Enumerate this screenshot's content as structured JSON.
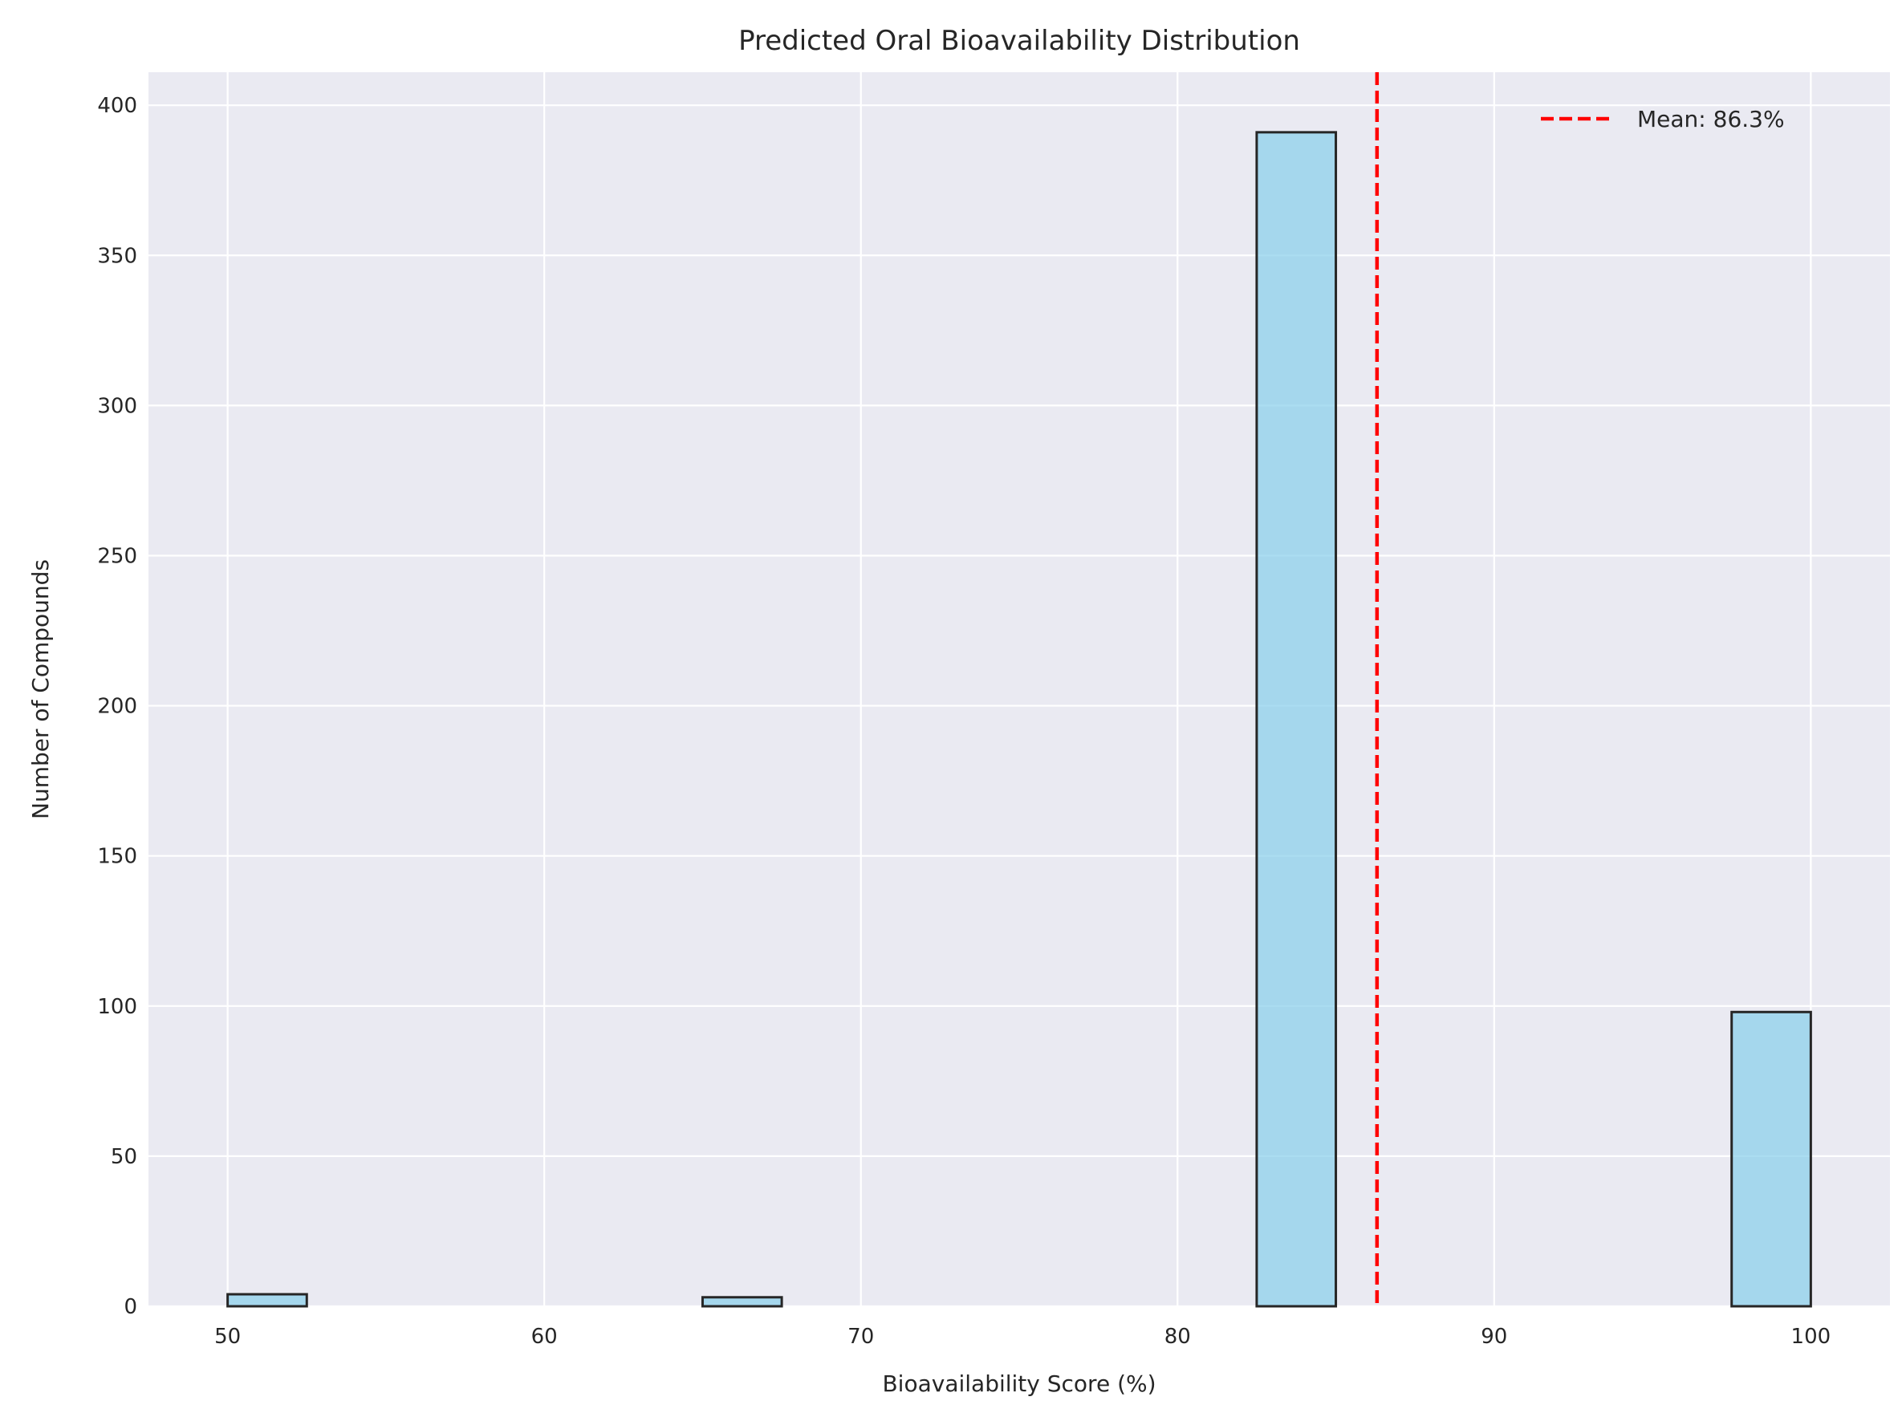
{
  "chart_data": {
    "type": "bar",
    "title": "Predicted Oral Bioavailability Distribution",
    "xlabel": "Bioavailability Score (%)",
    "ylabel": "Number of Compounds",
    "xlim": [
      47.5,
      102.5
    ],
    "ylim": [
      0,
      411
    ],
    "x_ticks": [
      50,
      60,
      70,
      80,
      90,
      100
    ],
    "y_ticks": [
      0,
      50,
      100,
      150,
      200,
      250,
      300,
      350,
      400
    ],
    "bin_width": 2.5,
    "bins": [
      {
        "start": 50.0,
        "end": 52.5,
        "count": 4
      },
      {
        "start": 65.0,
        "end": 67.5,
        "count": 3
      },
      {
        "start": 82.5,
        "end": 85.0,
        "count": 391
      },
      {
        "start": 97.5,
        "end": 100.0,
        "count": 98
      }
    ],
    "mean_line": {
      "value": 86.3,
      "label": "Mean: 86.3%",
      "color": "#ff0000",
      "style": "dashed"
    },
    "legend_position": "top-right",
    "grid": true,
    "colors": {
      "background": "#eaeaf2",
      "grid": "#ffffff",
      "bar_fill": "#87ceeb",
      "bar_edge": "#262626"
    }
  }
}
